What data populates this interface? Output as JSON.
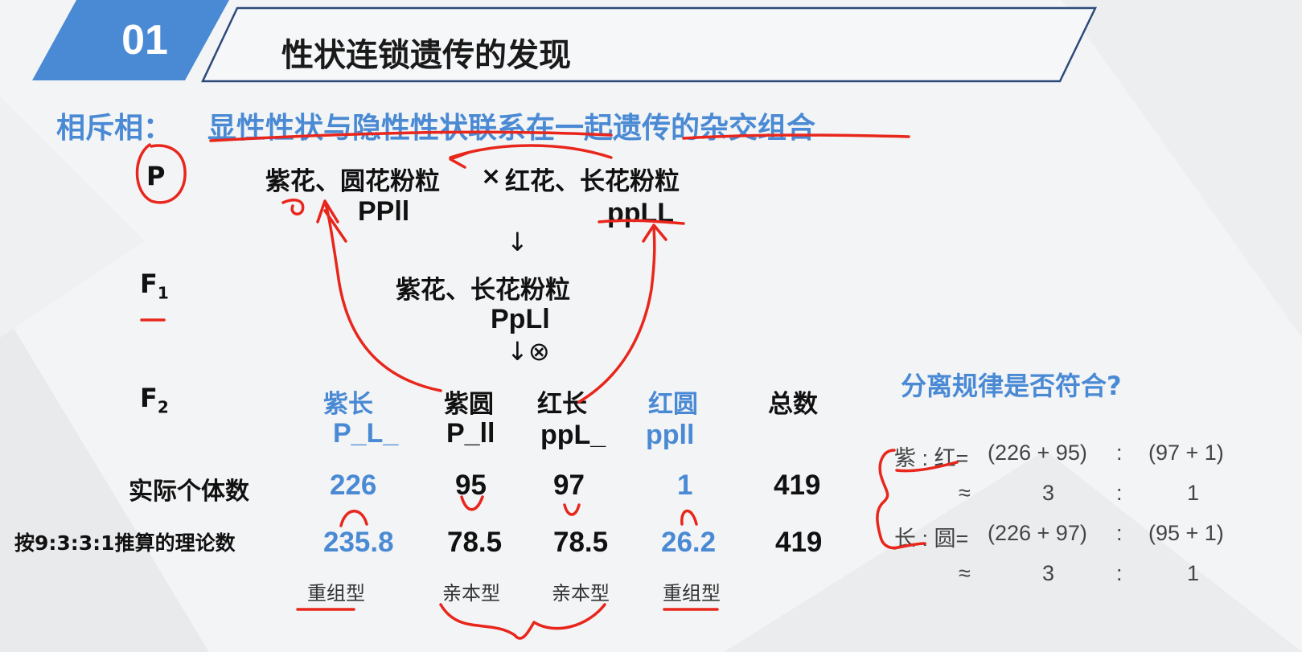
{
  "header": {
    "number": "01",
    "title": "性状连锁遗传的发现"
  },
  "definition": {
    "term": "相斥相：",
    "text": "显性性状与隐性性状联系在一起遗传的杂交组合"
  },
  "generations": {
    "p": "P",
    "f1": "F",
    "f1_sub": "1",
    "f2": "F",
    "f2_sub": "2"
  },
  "parents": {
    "left_pheno": "紫花、圆花粉粒",
    "left_geno": "PPll",
    "cross": "×",
    "right_pheno": "红花、长花粉粒",
    "right_geno": "ppLL"
  },
  "arrow_down": "↓",
  "f1": {
    "pheno": "紫花、长花粉粒",
    "geno": "PpLl"
  },
  "selfing_arrow": "↓⊗",
  "f2": {
    "columns": [
      {
        "name": "紫长",
        "geno": "P_L_",
        "actual": "226",
        "theory": "235.8",
        "type": "重组型",
        "highlight": true
      },
      {
        "name": "紫圆",
        "geno": "P_ll",
        "actual": "95",
        "theory": "78.5",
        "type": "亲本型",
        "highlight": false
      },
      {
        "name": "红长",
        "geno": "ppL_",
        "actual": "97",
        "theory": "78.5",
        "type": "亲本型",
        "highlight": false
      },
      {
        "name": "红圆",
        "geno": "ppll",
        "actual": "1",
        "theory": "26.2",
        "type": "重组型",
        "highlight": true
      }
    ],
    "total": {
      "name": "总数",
      "actual": "419",
      "theory": "419"
    }
  },
  "row_labels": {
    "actual": "实际个体数",
    "theory": "按9:3:3:1推算的理论数"
  },
  "segregation": {
    "question": "分离规律是否符合?",
    "rows": [
      {
        "label": "紫 : 红=",
        "left": "(226 + 95)",
        "colon": ":",
        "right": "(97 + 1)"
      },
      {
        "label": "≈",
        "left": "3",
        "colon": ":",
        "right": "1"
      },
      {
        "label": "长 : 圆=",
        "left": "(226 + 97)",
        "colon": ":",
        "right": "(95 + 1)"
      },
      {
        "label": "≈",
        "left": "3",
        "colon": ":",
        "right": "1"
      }
    ]
  },
  "colors": {
    "accent_blue": "#4a8ad4",
    "ink_red": "#e8261c",
    "header_border": "#2c4a7a"
  }
}
